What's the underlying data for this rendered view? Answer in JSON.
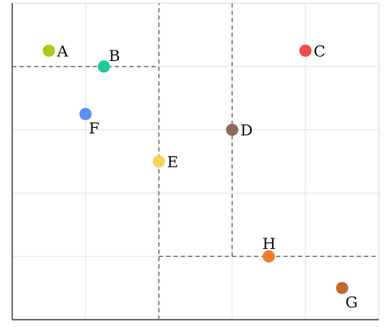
{
  "chart_data": {
    "type": "scatter",
    "title": "",
    "xlabel": "",
    "ylabel": "",
    "xlim": [
      0,
      10
    ],
    "ylim": [
      0,
      10
    ],
    "grid": true,
    "points": [
      {
        "label": "A",
        "x": 1.0,
        "y": 8.5,
        "color": "#a6cc1a",
        "label_pos": "right"
      },
      {
        "label": "B",
        "x": 2.5,
        "y": 8.0,
        "color": "#1ec99b",
        "label_pos": "above-right"
      },
      {
        "label": "C",
        "x": 8.0,
        "y": 8.5,
        "color": "#ef4c4c",
        "label_pos": "right"
      },
      {
        "label": "D",
        "x": 6.0,
        "y": 6.0,
        "color": "#8c6a5d",
        "label_pos": "right"
      },
      {
        "label": "E",
        "x": 4.0,
        "y": 5.0,
        "color": "#f7d45a",
        "label_pos": "right"
      },
      {
        "label": "F",
        "x": 2.0,
        "y": 6.5,
        "color": "#5b8ff0",
        "label_pos": "below-right"
      },
      {
        "label": "G",
        "x": 9.0,
        "y": 1.0,
        "color": "#bf6b30",
        "label_pos": "below-right"
      },
      {
        "label": "H",
        "x": 7.0,
        "y": 2.0,
        "color": "#f57a2a",
        "label_pos": "above"
      }
    ],
    "splits": [
      {
        "axis": "x",
        "at": 4.0,
        "from": 0,
        "to": 10
      },
      {
        "axis": "y",
        "at": 8.0,
        "from": 0,
        "to": 4.0
      },
      {
        "axis": "x",
        "at": 6.0,
        "from": 2.0,
        "to": 10
      },
      {
        "axis": "y",
        "at": 2.0,
        "from": 4.0,
        "to": 10
      }
    ]
  }
}
